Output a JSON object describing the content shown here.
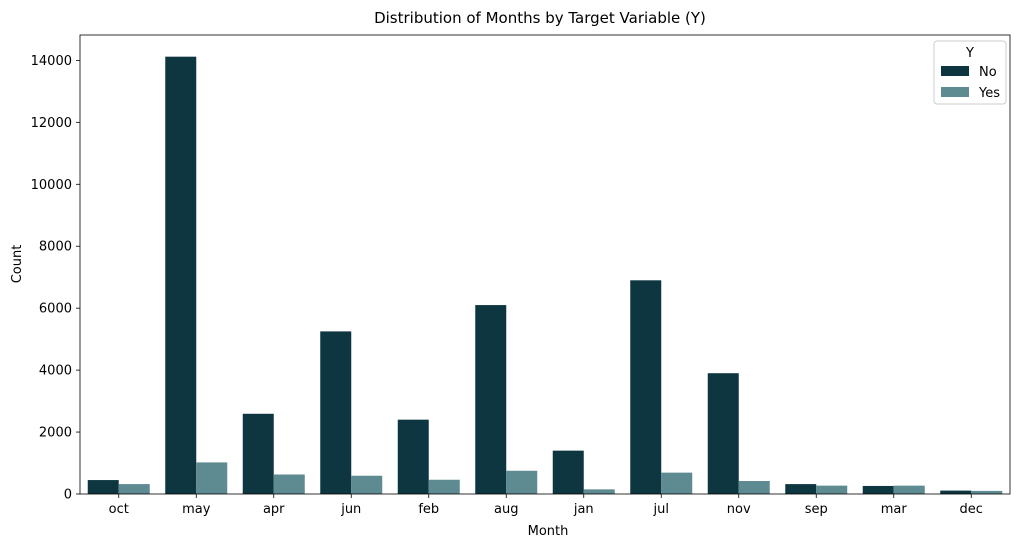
{
  "chart_data": {
    "type": "bar",
    "title": "Distribution of Months by Target Variable (Y)",
    "xlabel": "Month",
    "ylabel": "Count",
    "categories": [
      "oct",
      "may",
      "apr",
      "jun",
      "feb",
      "aug",
      "jan",
      "jul",
      "nov",
      "sep",
      "mar",
      "dec"
    ],
    "series": [
      {
        "name": "No",
        "color": "#0e3640",
        "values": [
          450,
          14120,
          2590,
          5250,
          2400,
          6100,
          1400,
          6900,
          3900,
          320,
          260,
          110
        ]
      },
      {
        "name": "Yes",
        "color": "#5e8b92",
        "values": [
          320,
          1020,
          630,
          590,
          460,
          750,
          150,
          690,
          420,
          270,
          270,
          100
        ]
      }
    ],
    "yticks": [
      0,
      2000,
      4000,
      6000,
      8000,
      10000,
      12000,
      14000
    ],
    "ylim": [
      0,
      14820
    ],
    "grid": false,
    "legend": {
      "title": "Y",
      "placement": "top-right"
    }
  }
}
